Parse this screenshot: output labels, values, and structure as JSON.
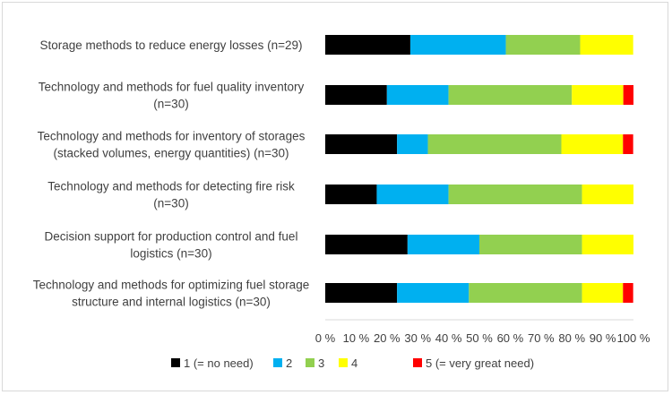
{
  "chart_data": {
    "type": "bar",
    "orientation": "horizontal",
    "stacked": "percent",
    "title": "",
    "xlabel": "",
    "ylabel": "",
    "xlim": [
      0,
      100
    ],
    "grid": false,
    "legend_position": "bottom",
    "categories": [
      {
        "lines": [
          "Storage methods to reduce energy losses (n=29)"
        ]
      },
      {
        "lines": [
          "Technology and methods for fuel quality inventory",
          "(n=30)"
        ]
      },
      {
        "lines": [
          "Technology and methods for inventory of storages",
          "(stacked volumes, energy quantities) (n=30)"
        ]
      },
      {
        "lines": [
          "Technology and methods for detecting fire risk",
          "(n=30)"
        ]
      },
      {
        "lines": [
          "Decision support for production control and fuel",
          "logistics (n=30)"
        ]
      },
      {
        "lines": [
          "Technology and methods for optimizing fuel storage",
          "structure and internal logistics (n=30)"
        ]
      }
    ],
    "series": [
      {
        "name": "1 (= no need)",
        "color": "#000000",
        "values": [
          27.6,
          20.0,
          23.3,
          16.7,
          26.7,
          23.3
        ]
      },
      {
        "name": "2",
        "color": "#00b0f0",
        "values": [
          31.0,
          20.0,
          10.0,
          23.3,
          23.3,
          23.3
        ]
      },
      {
        "name": "3",
        "color": "#92d050",
        "values": [
          24.1,
          40.0,
          43.3,
          43.3,
          33.3,
          36.7
        ]
      },
      {
        "name": "4",
        "color": "#ffff00",
        "values": [
          17.2,
          16.7,
          20.0,
          16.7,
          16.7,
          13.3
        ]
      },
      {
        "name": "5 (= very great need)",
        "color": "#ff0000",
        "values": [
          0.0,
          3.3,
          3.3,
          0.0,
          0.0,
          3.3
        ]
      }
    ],
    "x_ticks": [
      "0 %",
      "10 %",
      "20 %",
      "30 %",
      "40 %",
      "50 %",
      "60 %",
      "70 %",
      "80 %",
      "90 %",
      "100 %"
    ]
  }
}
